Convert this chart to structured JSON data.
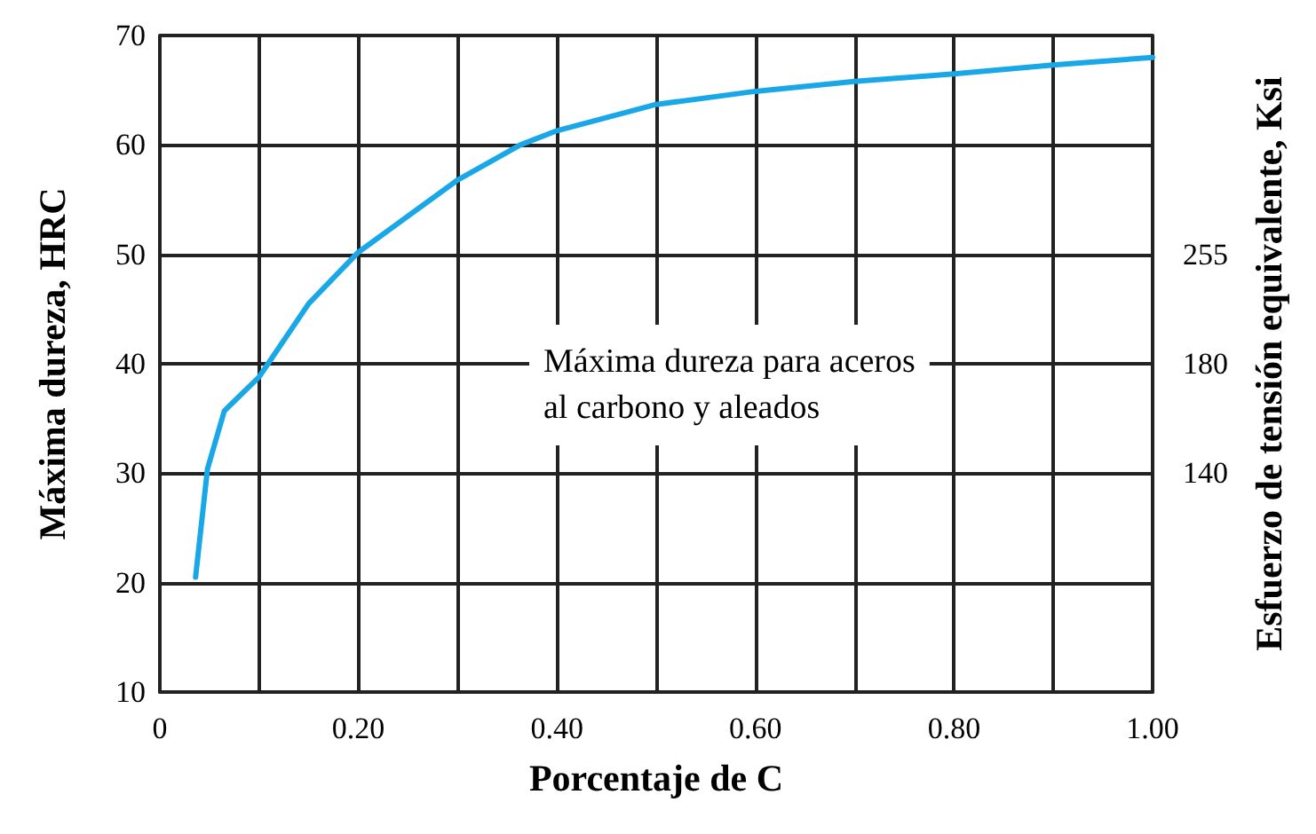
{
  "chart_data": {
    "type": "line",
    "xlabel": "Porcentaje de C",
    "ylabel": "Máxima dureza, HRC",
    "y2label": "Esfuerzo de tensión equivalente, Ksi",
    "annotations": [
      "Máxima dureza para aceros\nal carbono y aleados",
      "255",
      "180",
      "140"
    ],
    "series": [
      {
        "color": "#1aa7e8",
        "x": [
          0.036,
          0.048,
          0.065,
          0.1,
          0.15,
          0.2,
          0.3,
          0.363,
          0.4,
          0.5,
          0.6,
          0.7,
          0.8,
          0.9,
          1.0
        ],
        "values": [
          20.5,
          30.4,
          35.7,
          38.8,
          45.5,
          50.2,
          56.8,
          60,
          61.3,
          63.7,
          64.9,
          65.8,
          66.5,
          67.3,
          68.0
        ]
      }
    ],
    "xlim": [
      0,
      1
    ],
    "xticks": [
      {
        "value": 0,
        "label": "0"
      },
      {
        "value": 0.1,
        "label": null
      },
      {
        "value": 0.2,
        "label": "0.20"
      },
      {
        "value": 0.3,
        "label": null
      },
      {
        "value": 0.4,
        "label": "0.40"
      },
      {
        "value": 0.5,
        "label": null
      },
      {
        "value": 0.6,
        "label": "0.60"
      },
      {
        "value": 0.7,
        "label": null
      },
      {
        "value": 0.8,
        "label": "0.80"
      },
      {
        "value": 0.9,
        "label": null
      },
      {
        "value": 1,
        "label": "1.00"
      }
    ],
    "ylim": [
      10,
      70
    ],
    "yticks": [
      10,
      20,
      30,
      40,
      50,
      60,
      70
    ],
    "grid": true,
    "marker": "none",
    "line_style": "solid"
  }
}
